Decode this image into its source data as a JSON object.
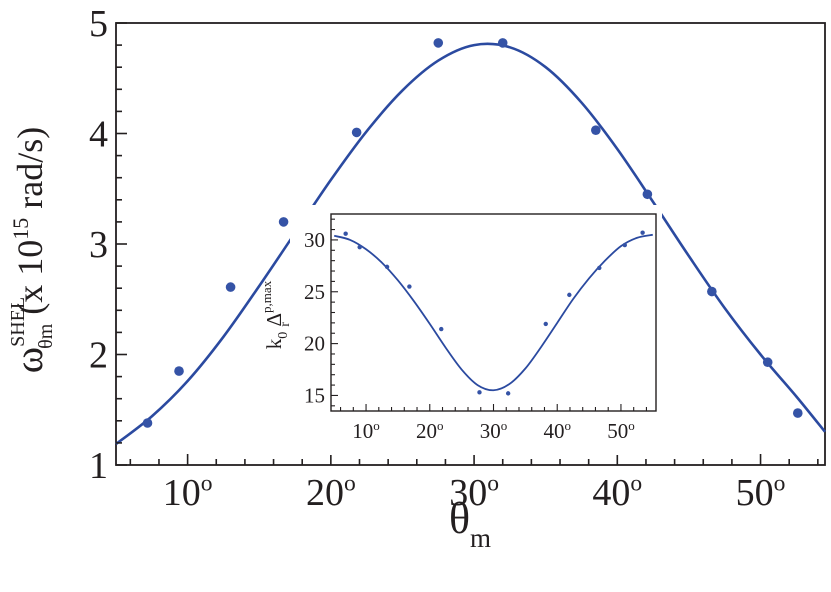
{
  "chart_data": [
    {
      "type": "scatter",
      "x_unit": "degrees",
      "xlim": [
        5,
        54.5
      ],
      "ylim": [
        1,
        5
      ],
      "x_ticks": [
        10,
        20,
        30,
        40,
        50
      ],
      "x_tick_labels": [
        "10",
        "20",
        "30",
        "40",
        "50"
      ],
      "y_ticks": [
        1,
        2,
        3,
        4,
        5
      ],
      "y_tick_labels": [
        "1",
        "2",
        "3",
        "4",
        "5"
      ],
      "degree_mark": "o",
      "xlabel": {
        "symbol": "θ",
        "subscript": "m"
      },
      "ylabel": {
        "symbol": "ω",
        "superscript": "SHEL",
        "subscript": "θm",
        "unit_text": " (x 10",
        "unit_exp": "15",
        "unit_tail": " rad/s)"
      },
      "grid": false,
      "colors": {
        "marker": "#3553a6",
        "line": "#2b4aa0",
        "axis": "#231f20"
      },
      "series": [
        {
          "mode": "markers",
          "x": [
            7.2,
            9.4,
            13.0,
            16.7,
            21.8,
            27.5,
            32.0,
            38.5,
            42.1,
            46.6,
            50.5,
            52.6
          ],
          "y": [
            1.38,
            1.85,
            2.61,
            3.2,
            4.01,
            4.82,
            4.82,
            4.03,
            3.45,
            2.57,
            1.93,
            1.47
          ]
        },
        {
          "mode": "line",
          "x": [
            5,
            7.5,
            10,
            12.5,
            15,
            17.5,
            20,
            22.5,
            25,
            27.5,
            30,
            32.5,
            35,
            37.5,
            40,
            42.5,
            45,
            47.5,
            50,
            52.5,
            54.5
          ],
          "y": [
            1.19,
            1.44,
            1.76,
            2.16,
            2.62,
            3.1,
            3.58,
            4.02,
            4.39,
            4.66,
            4.8,
            4.78,
            4.6,
            4.28,
            3.86,
            3.38,
            2.89,
            2.42,
            2.0,
            1.62,
            1.3
          ]
        }
      ]
    },
    {
      "type": "scatter",
      "inset": true,
      "x_unit": "degrees",
      "xlim": [
        4.5,
        55.5
      ],
      "ylim": [
        13.5,
        32.5
      ],
      "x_ticks": [
        10,
        20,
        30,
        40,
        50
      ],
      "x_tick_labels": [
        "10",
        "20",
        "30",
        "40",
        "50"
      ],
      "y_ticks": [
        15,
        20,
        25,
        30
      ],
      "y_tick_labels": [
        "15",
        "20",
        "25",
        "30"
      ],
      "degree_mark": "o",
      "ylabel": {
        "k": "k",
        "k_sub": "0",
        "delta": " Δ",
        "delta_sub": "r",
        "delta_sup": "p,max"
      },
      "grid": false,
      "series": [
        {
          "mode": "markers",
          "x": [
            6.8,
            9.0,
            13.3,
            16.8,
            21.8,
            27.8,
            32.3,
            38.2,
            41.9,
            46.6,
            50.6,
            53.4
          ],
          "y": [
            30.6,
            29.3,
            27.4,
            25.5,
            21.4,
            15.3,
            15.2,
            21.9,
            24.7,
            27.3,
            29.5,
            30.7
          ]
        },
        {
          "mode": "line",
          "x": [
            5,
            7.5,
            10,
            12.5,
            15,
            17.5,
            20,
            22.5,
            25,
            27.5,
            30,
            32.5,
            35,
            37.5,
            40,
            42.5,
            45,
            47.5,
            50,
            52.5,
            55
          ],
          "y": [
            30.4,
            30.0,
            29.1,
            27.8,
            26.1,
            24.1,
            21.9,
            19.6,
            17.5,
            16.0,
            15.5,
            16.1,
            17.6,
            19.7,
            22.0,
            24.3,
            26.3,
            28.0,
            29.4,
            30.2,
            30.5
          ]
        }
      ]
    }
  ]
}
